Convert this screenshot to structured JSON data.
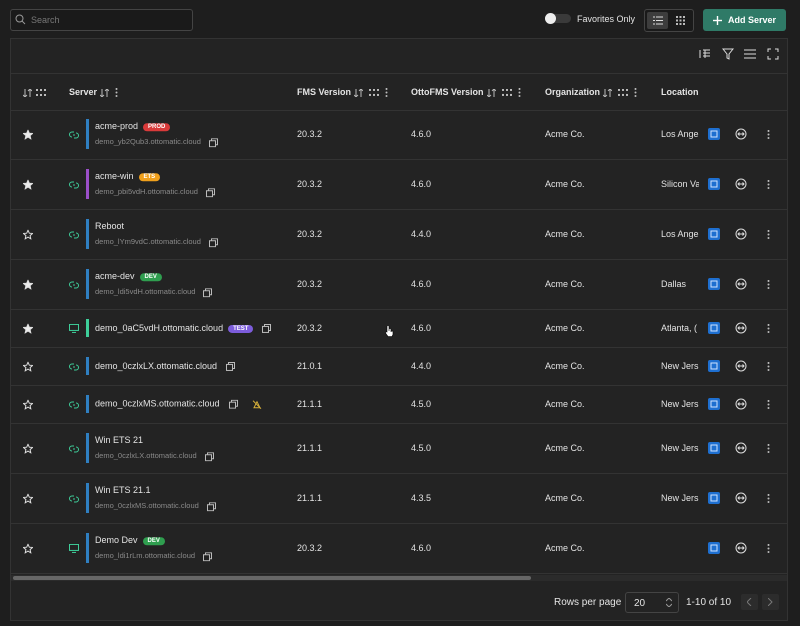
{
  "toolbar": {
    "search_placeholder": "Search",
    "favorites_label": "Favorites Only",
    "add_button": "Add Server"
  },
  "table": {
    "columns": [
      "Server",
      "FMS Version",
      "OttoFMS Version",
      "Organization",
      "Location"
    ],
    "rows": [
      {
        "favorite": true,
        "kind": "cloud",
        "bar": "#2f7fc1",
        "name": "acme-prod",
        "tag": "PROD",
        "tag_color": "#d93a3a",
        "host": "demo_yb2Qub3.ottomatic.cloud",
        "fms": "20.3.2",
        "otto": "4.6.0",
        "org": "Acme Co.",
        "location": "Los Ange"
      },
      {
        "favorite": true,
        "kind": "cloud",
        "bar": "#9b4fc9",
        "name": "acme-win",
        "tag": "ETS",
        "tag_color": "#f0a01c",
        "host": "demo_pbi5vdH.ottomatic.cloud",
        "fms": "20.3.2",
        "otto": "4.6.0",
        "org": "Acme Co.",
        "location": "Silicon Va"
      },
      {
        "favorite": false,
        "kind": "cloud",
        "bar": "#2f7fc1",
        "name": "Reboot",
        "host": "demo_lYm9vdC.ottomatic.cloud",
        "fms": "20.3.2",
        "otto": "4.4.0",
        "org": "Acme Co.",
        "location": "Los Ange"
      },
      {
        "favorite": true,
        "kind": "cloud",
        "bar": "#2f7fc1",
        "name": "acme-dev",
        "tag": "DEV",
        "tag_color": "#2f9e4f",
        "host": "demo_ldi5vdH.ottomatic.cloud",
        "fms": "20.3.2",
        "otto": "4.6.0",
        "org": "Acme Co.",
        "location": "Dallas"
      },
      {
        "favorite": true,
        "kind": "desktop",
        "bar": "#3ecf9a",
        "name": "demo_0aC5vdH.ottomatic.cloud",
        "tag": "TEST",
        "tag_color": "#7c5cdb",
        "fms": "20.3.2",
        "otto": "4.6.0",
        "org": "Acme Co.",
        "location": "Atlanta, ("
      },
      {
        "favorite": false,
        "kind": "cloud",
        "bar": "#2f7fc1",
        "name": "demo_0czlxLX.ottomatic.cloud",
        "fms": "21.0.1",
        "otto": "4.4.0",
        "org": "Acme Co.",
        "location": "New Jers"
      },
      {
        "favorite": false,
        "kind": "cloud",
        "bar": "#2f7fc1",
        "name": "demo_0czlxMS.ottomatic.cloud",
        "warning": true,
        "fms": "21.1.1",
        "otto": "4.5.0",
        "org": "Acme Co.",
        "location": "New Jers"
      },
      {
        "favorite": false,
        "kind": "cloud",
        "bar": "#2f7fc1",
        "name": "Win ETS 21",
        "host": "demo_0czlxLX.ottomatic.cloud",
        "fms": "21.1.1",
        "otto": "4.5.0",
        "org": "Acme Co.",
        "location": "New Jers"
      },
      {
        "favorite": false,
        "kind": "cloud",
        "bar": "#2f7fc1",
        "name": "Win ETS 21.1",
        "host": "demo_0czlxMS.ottomatic.cloud",
        "fms": "21.1.1",
        "otto": "4.3.5",
        "org": "Acme Co.",
        "location": "New Jers"
      },
      {
        "favorite": false,
        "kind": "desktop",
        "bar": "#2f7fc1",
        "name": "Demo Dev",
        "tag": "DEV",
        "tag_color": "#2f9e4f",
        "host": "demo_ldi1rLm.ottomatic.cloud",
        "fms": "20.3.2",
        "otto": "4.6.0",
        "org": "Acme Co."
      }
    ]
  },
  "footer": {
    "rows_per_page_label": "Rows per page",
    "rows_per_page": "20",
    "range": "1-10 of 10"
  }
}
